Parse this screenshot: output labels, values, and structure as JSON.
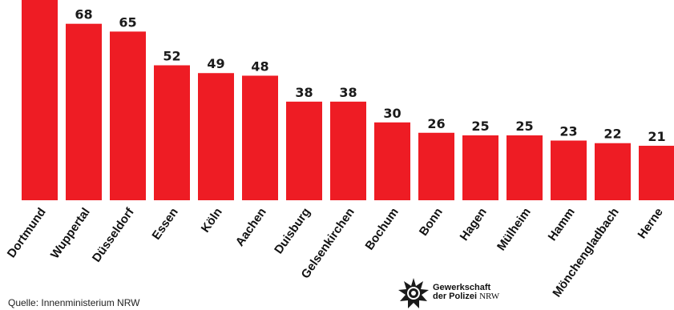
{
  "chart_data": {
    "type": "bar",
    "categories": [
      "Dortmund",
      "Wuppertal",
      "Düsseldorf",
      "Essen",
      "Köln",
      "Aachen",
      "Duisburg",
      "Gelsenkirchen",
      "Bochum",
      "Bonn",
      "Hagen",
      "Mülheim",
      "Hamm",
      "Mönchengladbach",
      "Herne"
    ],
    "values": [
      null,
      68,
      65,
      52,
      49,
      48,
      38,
      38,
      30,
      26,
      25,
      25,
      23,
      22,
      21
    ],
    "data_labels": [
      "",
      "68",
      "65",
      "52",
      "49",
      "48",
      "38",
      "38",
      "30",
      "26",
      "25",
      "25",
      "23",
      "22",
      "21"
    ],
    "title": "",
    "xlabel": "",
    "ylabel": "",
    "grid": false,
    "bar_color": "#ee1c24"
  },
  "source": "Quelle: Innenministerium NRW",
  "logo": {
    "line1": "Gewerkschaft",
    "line2_bold": "der Polizei",
    "line2_regular": "NRW"
  }
}
